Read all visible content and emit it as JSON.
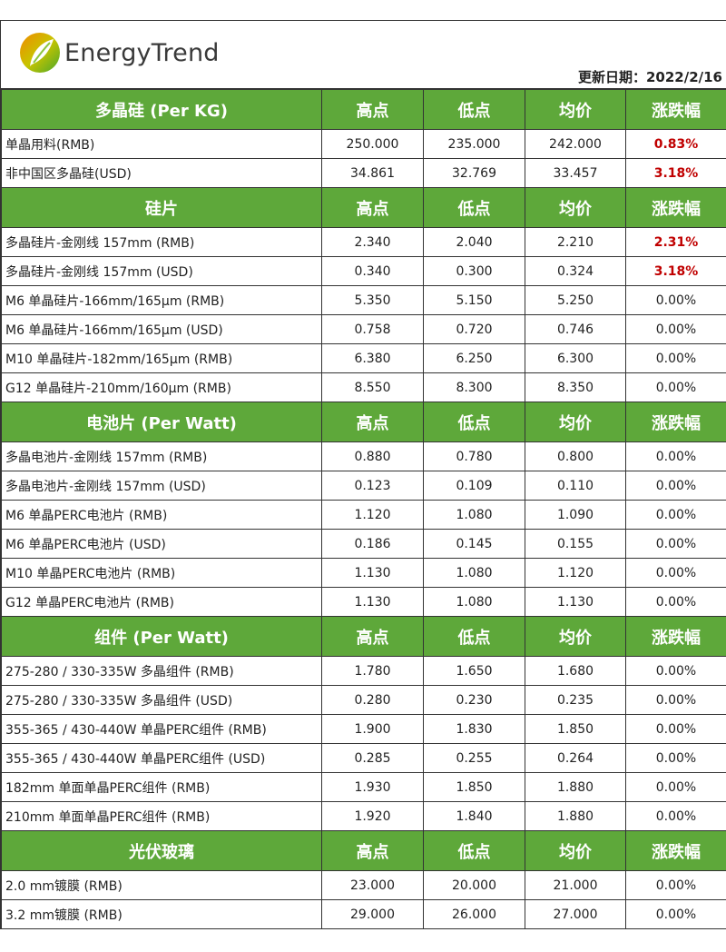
{
  "brand": "EnergyTrend",
  "update_date": "更新日期：2022/2/16",
  "columns": [
    "高点",
    "低点",
    "均价",
    "涨跌幅"
  ],
  "colors": {
    "header_bg": "#5ea83a",
    "rise": "#c00000"
  },
  "sections": [
    {
      "title": "多晶硅 (Per KG)",
      "rows": [
        [
          "单晶用料(RMB)",
          "250.000",
          "235.000",
          "242.000",
          "0.83%"
        ],
        [
          "非中国区多晶硅(USD)",
          "34.861",
          "32.769",
          "33.457",
          "3.18%"
        ]
      ]
    },
    {
      "title": "硅片",
      "rows": [
        [
          "多晶硅片-金刚线 157mm (RMB)",
          "2.340",
          "2.040",
          "2.210",
          "2.31%"
        ],
        [
          "多晶硅片-金刚线 157mm (USD)",
          "0.340",
          "0.300",
          "0.324",
          "3.18%"
        ],
        [
          "M6 单晶硅片-166mm/165µm (RMB)",
          "5.350",
          "5.150",
          "5.250",
          "0.00%"
        ],
        [
          "M6 单晶硅片-166mm/165µm (USD)",
          "0.758",
          "0.720",
          "0.746",
          "0.00%"
        ],
        [
          "M10 单晶硅片-182mm/165µm (RMB)",
          "6.380",
          "6.250",
          "6.300",
          "0.00%"
        ],
        [
          "G12 单晶硅片-210mm/160µm  (RMB)",
          "8.550",
          "8.300",
          "8.350",
          "0.00%"
        ]
      ]
    },
    {
      "title": "电池片 (Per Watt)",
      "rows": [
        [
          "多晶电池片-金刚线 157mm (RMB)",
          "0.880",
          "0.780",
          "0.800",
          "0.00%"
        ],
        [
          "多晶电池片-金刚线 157mm (USD)",
          "0.123",
          "0.109",
          "0.110",
          "0.00%"
        ],
        [
          "M6 单晶PERC电池片 (RMB)",
          "1.120",
          "1.080",
          "1.090",
          "0.00%"
        ],
        [
          "M6 单晶PERC电池片 (USD)",
          "0.186",
          "0.145",
          "0.155",
          "0.00%"
        ],
        [
          "M10 单晶PERC电池片 (RMB)",
          "1.130",
          "1.080",
          "1.120",
          "0.00%"
        ],
        [
          "G12 单晶PERC电池片 (RMB)",
          "1.130",
          "1.080",
          "1.130",
          "0.00%"
        ]
      ]
    },
    {
      "title": "组件 (Per Watt)",
      "rows": [
        [
          "275-280 / 330-335W 多晶组件 (RMB)",
          "1.780",
          "1.650",
          "1.680",
          "0.00%"
        ],
        [
          "275-280 / 330-335W 多晶组件 (USD)",
          "0.280",
          "0.230",
          "0.235",
          "0.00%"
        ],
        [
          "355-365 / 430-440W 单晶PERC组件 (RMB)",
          "1.900",
          "1.830",
          "1.850",
          "0.00%"
        ],
        [
          "355-365 / 430-440W 单晶PERC组件 (USD)",
          "0.285",
          "0.255",
          "0.264",
          "0.00%"
        ],
        [
          "182mm 单面单晶PERC组件 (RMB)",
          "1.930",
          "1.850",
          "1.880",
          "0.00%"
        ],
        [
          "210mm 单面单晶PERC组件 (RMB)",
          "1.920",
          "1.840",
          "1.880",
          "0.00%"
        ]
      ]
    },
    {
      "title": "光伏玻璃",
      "rows": [
        [
          "2.0 mm镀膜 (RMB)",
          "23.000",
          "20.000",
          "21.000",
          "0.00%"
        ],
        [
          "3.2 mm镀膜 (RMB)",
          "29.000",
          "26.000",
          "27.000",
          "0.00%"
        ]
      ]
    }
  ]
}
